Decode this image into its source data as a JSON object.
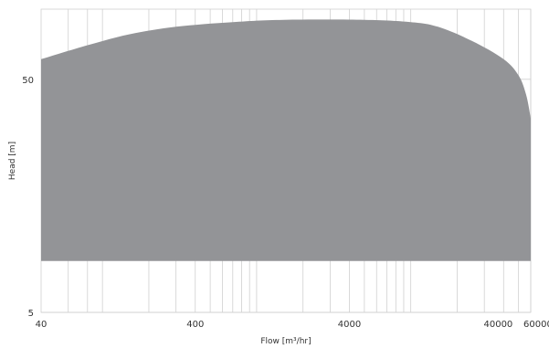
{
  "chart_data": {
    "type": "area",
    "title": "",
    "xlabel": "Flow [m³/hr]",
    "ylabel": "Head [m]",
    "x_scale": "log",
    "y_scale": "log",
    "xlim": [
      40,
      60000
    ],
    "ylim": [
      5,
      100
    ],
    "grid": true,
    "fill_color": "#939497",
    "grid_color": "#d0d0d0",
    "x_ticks": [
      {
        "value": 40,
        "label": "40"
      },
      {
        "value": 400,
        "label": "400"
      },
      {
        "value": 4000,
        "label": "4000"
      },
      {
        "value": 40000,
        "label": "40000"
      },
      {
        "value": 60000,
        "label": "60000"
      }
    ],
    "y_ticks": [
      {
        "value": 5,
        "label": "5"
      },
      {
        "value": 50,
        "label": "50"
      }
    ],
    "x_grid": [
      60,
      80,
      100,
      200,
      300,
      400,
      500,
      600,
      700,
      800,
      900,
      1000,
      2000,
      3000,
      4000,
      5000,
      6000,
      7000,
      8000,
      9000,
      10000,
      20000,
      30000,
      40000,
      50000,
      60000
    ],
    "y_grid": [
      5,
      50
    ],
    "series": [
      {
        "upper": [
          {
            "x": 40,
            "y": 61
          },
          {
            "x": 80,
            "y": 70
          },
          {
            "x": 150,
            "y": 78
          },
          {
            "x": 300,
            "y": 84
          },
          {
            "x": 700,
            "y": 88
          },
          {
            "x": 1500,
            "y": 90
          },
          {
            "x": 5000,
            "y": 90
          },
          {
            "x": 10000,
            "y": 88
          },
          {
            "x": 15000,
            "y": 84
          },
          {
            "x": 25000,
            "y": 73
          },
          {
            "x": 40000,
            "y": 61
          },
          {
            "x": 50000,
            "y": 52
          },
          {
            "x": 56000,
            "y": 43
          },
          {
            "x": 60000,
            "y": 34
          }
        ],
        "lower": 8.3
      }
    ]
  }
}
